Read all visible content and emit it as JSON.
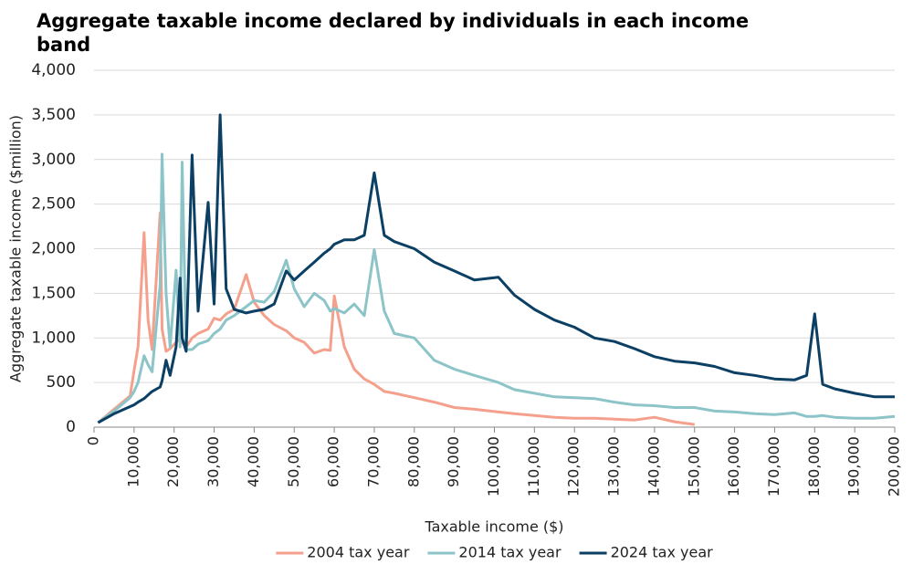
{
  "chart_data": {
    "type": "line",
    "title": "Aggregate taxable income declared by individuals in each income band",
    "x_label": "Taxable income ($)",
    "y_label": "Aggregate taxable income ($million)",
    "x": [
      1000,
      5000,
      9000,
      10000,
      11000,
      12500,
      13500,
      14500,
      16500,
      17000,
      18000,
      19000,
      20500,
      21500,
      22000,
      23000,
      24500,
      26000,
      28500,
      30000,
      31500,
      33000,
      35000,
      38000,
      40000,
      42500,
      45000,
      48000,
      50000,
      52500,
      55000,
      57500,
      59000,
      60000,
      62500,
      65000,
      67500,
      70000,
      72500,
      75000,
      80000,
      85000,
      90000,
      95000,
      101000,
      105000,
      110000,
      115000,
      120000,
      125000,
      130000,
      135000,
      140000,
      145000,
      150000,
      155000,
      160000,
      165000,
      170000,
      175000,
      178000,
      180000,
      182000,
      185000,
      190000,
      195000,
      200000
    ],
    "series": [
      {
        "name": "2004 tax year",
        "color": "#f4a08c",
        "values": [
          50,
          200,
          350,
          630,
          900,
          2180,
          1200,
          870,
          2400,
          1100,
          850,
          880,
          950,
          1000,
          950,
          900,
          1000,
          1050,
          1100,
          1220,
          1200,
          1270,
          1320,
          1710,
          1400,
          1250,
          1150,
          1080,
          1000,
          950,
          830,
          870,
          860,
          1470,
          900,
          650,
          540,
          480,
          400,
          380,
          330,
          280,
          220,
          200,
          170,
          150,
          130,
          110,
          100,
          100,
          90,
          80,
          110,
          60,
          30,
          null,
          null,
          null,
          null,
          null,
          null,
          null,
          null,
          null,
          null,
          null,
          null
        ]
      },
      {
        "name": "2014 tax year",
        "color": "#8cc4c8",
        "values": [
          50,
          180,
          330,
          400,
          500,
          800,
          700,
          620,
          1600,
          3060,
          1500,
          900,
          1760,
          900,
          2970,
          870,
          870,
          930,
          970,
          1050,
          1100,
          1200,
          1250,
          1350,
          1420,
          1400,
          1520,
          1870,
          1550,
          1350,
          1500,
          1420,
          1300,
          1330,
          1280,
          1380,
          1250,
          1990,
          1300,
          1050,
          1000,
          750,
          650,
          580,
          500,
          420,
          380,
          340,
          330,
          320,
          280,
          250,
          240,
          220,
          220,
          180,
          170,
          150,
          140,
          160,
          120,
          120,
          130,
          110,
          100,
          100,
          120
        ]
      },
      {
        "name": "2024 tax year",
        "color": "#0b3f63",
        "values": [
          50,
          150,
          230,
          250,
          280,
          320,
          360,
          400,
          450,
          520,
          750,
          580,
          900,
          1670,
          1000,
          850,
          3050,
          1300,
          2520,
          1380,
          3500,
          1550,
          1320,
          1280,
          1300,
          1320,
          1380,
          1750,
          1650,
          1750,
          1850,
          1950,
          2000,
          2050,
          2100,
          2100,
          2150,
          2850,
          2150,
          2080,
          2000,
          1850,
          1750,
          1650,
          1680,
          1480,
          1320,
          1200,
          1120,
          1000,
          960,
          880,
          790,
          740,
          720,
          680,
          610,
          580,
          540,
          530,
          580,
          1270,
          480,
          430,
          380,
          340,
          340
        ]
      }
    ],
    "xlim": [
      0,
      200000
    ],
    "xticks": [
      0,
      {
        "value": 10000,
        "label": "10,000"
      },
      {
        "value": 20000,
        "label": "20,000"
      },
      {
        "value": 30000,
        "label": "30,000"
      },
      {
        "value": 40000,
        "label": "40,000"
      },
      {
        "value": 50000,
        "label": "50,000"
      },
      {
        "value": 60000,
        "label": "60,000"
      },
      {
        "value": 70000,
        "label": "70,000"
      },
      {
        "value": 80000,
        "label": "80,000"
      },
      {
        "value": 90000,
        "label": "90,000"
      },
      {
        "value": 100000,
        "label": "100,000"
      },
      {
        "value": 110000,
        "label": "110,000"
      },
      {
        "value": 120000,
        "label": "120,000"
      },
      {
        "value": 130000,
        "label": "130,000"
      },
      {
        "value": 140000,
        "label": "140,000"
      },
      {
        "value": 150000,
        "label": "150,000"
      },
      {
        "value": 160000,
        "label": "160,000"
      },
      {
        "value": 170000,
        "label": "170,000"
      },
      {
        "value": 180000,
        "label": "180,000"
      },
      {
        "value": 190000,
        "label": "190,000"
      },
      {
        "value": 200000,
        "label": "200,000"
      }
    ],
    "ylim": [
      0,
      4000
    ],
    "yticks": [
      0,
      500,
      {
        "value": 1000,
        "label": "1,000"
      },
      {
        "value": 1500,
        "label": "1,500"
      },
      {
        "value": 2000,
        "label": "2,000"
      },
      {
        "value": 2500,
        "label": "2,500"
      },
      {
        "value": 3000,
        "label": "3,000"
      },
      {
        "value": 3500,
        "label": "3,500"
      },
      {
        "value": 4000,
        "label": "4,000"
      }
    ],
    "grid": true,
    "legend": "bottom"
  }
}
